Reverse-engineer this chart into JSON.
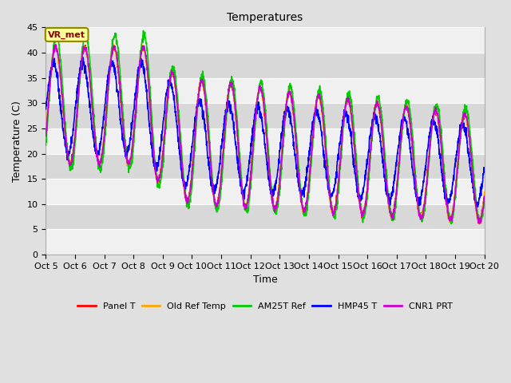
{
  "title": "Temperatures",
  "ylabel": "Temperature (C)",
  "xlabel": "Time",
  "ylim": [
    0,
    45
  ],
  "yticks": [
    0,
    5,
    10,
    15,
    20,
    25,
    30,
    35,
    40,
    45
  ],
  "annotation_text": "VR_met",
  "annotation_color": "#8B0000",
  "annotation_bg": "#FFFF99",
  "annotation_border": "#8B8B00",
  "legend_labels": [
    "Panel T",
    "Old Ref Temp",
    "AM25T Ref",
    "HMP45 T",
    "CNR1 PRT"
  ],
  "line_colors": [
    "#FF0000",
    "#FFA500",
    "#00CC00",
    "#0000FF",
    "#CC00CC"
  ],
  "line_widths": [
    1.0,
    1.0,
    1.2,
    1.2,
    1.2
  ],
  "n_days": 15,
  "samples_per_day": 144,
  "start_day": 5,
  "bg_color": "#E0E0E0",
  "band_colors": [
    "#F0F0F0",
    "#D8D8D8"
  ],
  "figsize": [
    6.4,
    4.8
  ],
  "dpi": 100,
  "title_fontsize": 10,
  "axis_label_fontsize": 9,
  "tick_fontsize": 8,
  "legend_fontsize": 8
}
